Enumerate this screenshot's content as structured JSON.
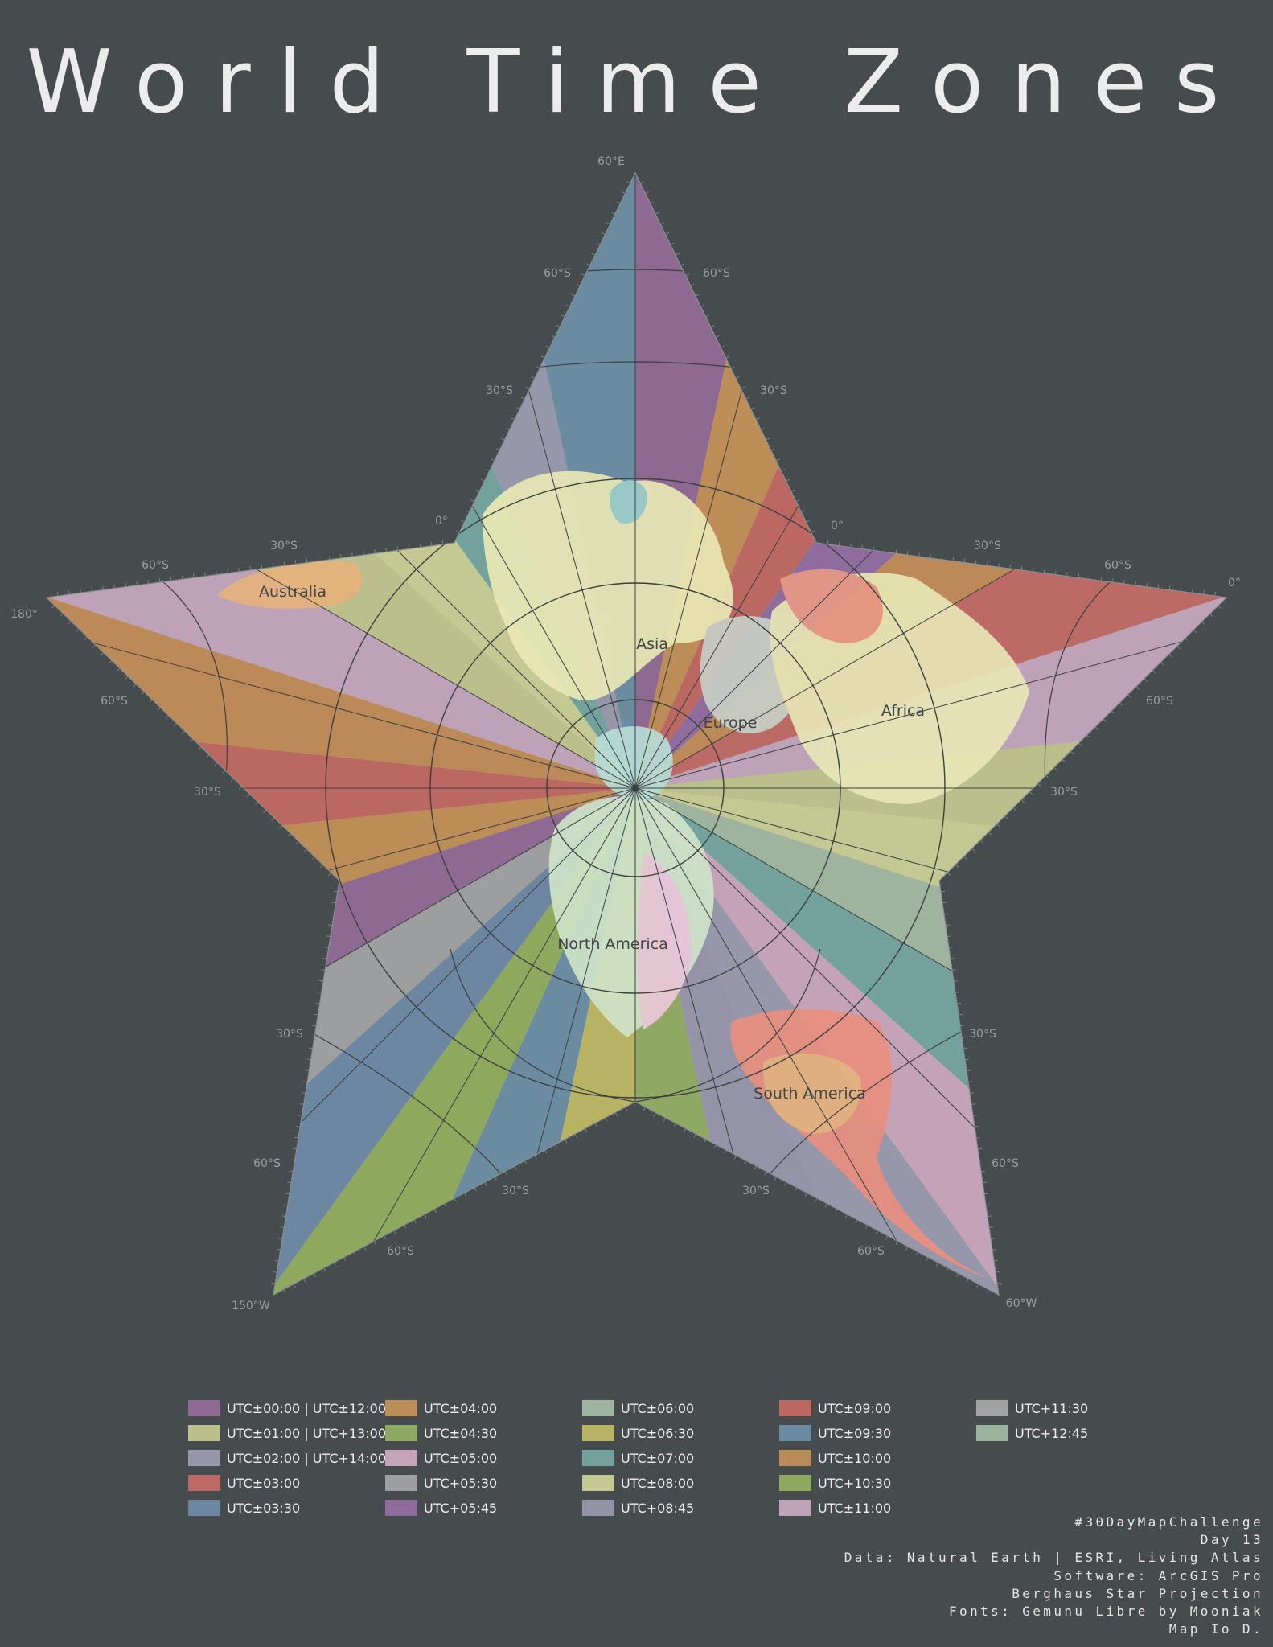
{
  "title": "World Time Zones",
  "map": {
    "projection_note": "Berghaus Star Projection",
    "point_labels": {
      "top": "60°E",
      "left": "180°",
      "right": "0°",
      "bottom_left": "150°W",
      "bottom_right": "60°W"
    },
    "graticule_labels": {
      "top_arm": [
        "60°S",
        "60°S",
        "30°S",
        "30°S"
      ],
      "left_arm": [
        "30°S",
        "60°S",
        "60°S",
        "30°S"
      ],
      "right_arm": [
        "30°S",
        "60°S",
        "60°S",
        "30°S"
      ],
      "bottom_left_arm": [
        "30°S",
        "60°S",
        "30°S",
        "60°S"
      ],
      "bottom_right_arm": [
        "30°S",
        "60°S",
        "30°S",
        "60°S"
      ],
      "equator": [
        "0°",
        "0°"
      ]
    },
    "continents": [
      "Asia",
      "Europe",
      "Africa",
      "Australia",
      "North America",
      "South America"
    ],
    "colors": {
      "background": "#464c4d",
      "graticule": "#3a3f40",
      "label_gray": "#9aa0a0",
      "continent_label": "#3f4446"
    }
  },
  "legend": [
    {
      "label": "UTC±00:00 | UTC±12:00",
      "color": "#8e6a93"
    },
    {
      "label": "UTC±01:00 | UTC+13:00",
      "color": "#bbbf8c"
    },
    {
      "label": "UTC±02:00 | UTC+14:00",
      "color": "#9697ab"
    },
    {
      "label": "UTC±03:00",
      "color": "#bb6a65"
    },
    {
      "label": "UTC±03:30",
      "color": "#6d87a2"
    },
    {
      "label": "UTC±04:00",
      "color": "#bd8d57"
    },
    {
      "label": "UTC±04:30",
      "color": "#8fa863"
    },
    {
      "label": "UTC±05:00",
      "color": "#c4a2b8"
    },
    {
      "label": "UTC+05:30",
      "color": "#9c9e9f"
    },
    {
      "label": "UTC+05:45",
      "color": "#8e6c9e"
    },
    {
      "label": "UTC±06:00",
      "color": "#9fb49e"
    },
    {
      "label": "UTC±06:30",
      "color": "#b8b363"
    },
    {
      "label": "UTC±07:00",
      "color": "#73a29d"
    },
    {
      "label": "UTC±08:00",
      "color": "#c4c994"
    },
    {
      "label": "UTC+08:45",
      "color": "#9493a8"
    },
    {
      "label": "UTC±09:00",
      "color": "#bb6863"
    },
    {
      "label": "UTC±09:30",
      "color": "#6b8ca0"
    },
    {
      "label": "UTC±10:00",
      "color": "#bc8a58"
    },
    {
      "label": "UTC+10:30",
      "color": "#8ea85e"
    },
    {
      "label": "UTC±11:00",
      "color": "#bea3b8"
    },
    {
      "label": "UTC+11:30",
      "color": "#a0a2a4"
    },
    {
      "label": "UTC+12:45",
      "color": "#9cb49d"
    }
  ],
  "credits": [
    "#30DayMapChallenge",
    "Day 13",
    "Data: Natural Earth | ESRI, Living Atlas",
    "Software: ArcGIS Pro",
    "Berghaus Star Projection",
    "Fonts: Gemunu Libre by Mooniak",
    "Map Io D."
  ]
}
